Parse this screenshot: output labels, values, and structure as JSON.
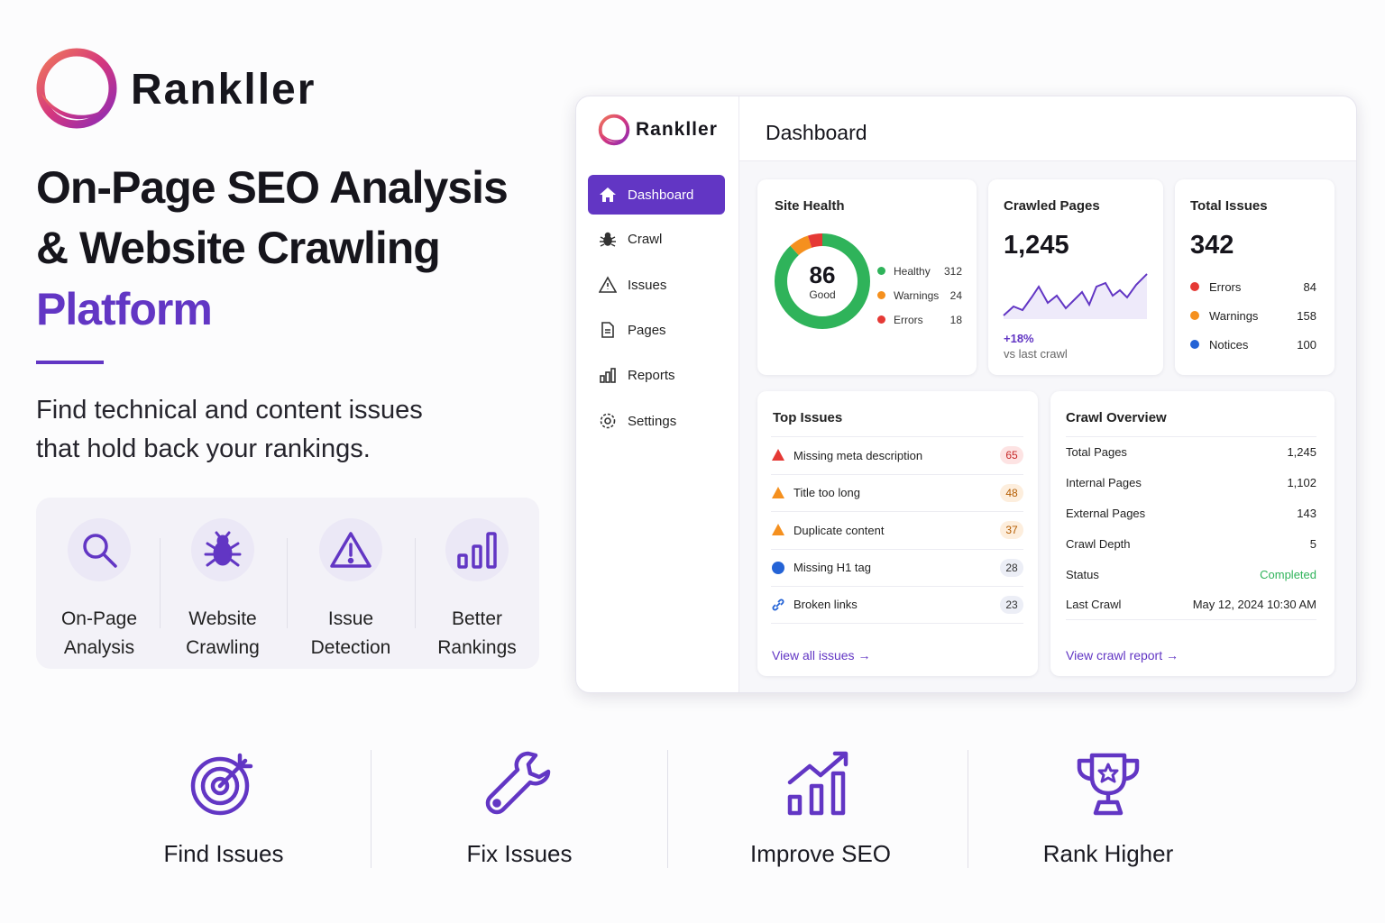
{
  "brand": {
    "name": "Rankller"
  },
  "hero": {
    "title_line1": "On-Page SEO Analysis",
    "title_line2": "& Website Crawling",
    "title_accent": "Platform",
    "subtitle_line1": "Find technical and content issues",
    "subtitle_line2": "that hold back your rankings."
  },
  "features": [
    {
      "line1": "On-Page",
      "line2": "Analysis"
    },
    {
      "line1": "Website",
      "line2": "Crawling"
    },
    {
      "line1": "Issue",
      "line2": "Detection"
    },
    {
      "line1": "Better",
      "line2": "Rankings"
    }
  ],
  "dashboard": {
    "brand": "Rankller",
    "nav": [
      "Dashboard",
      "Crawl",
      "Issues",
      "Pages",
      "Reports",
      "Settings"
    ],
    "title": "Dashboard",
    "site_health": {
      "title": "Site Health",
      "score": 86,
      "score_label": "Good",
      "legend": [
        {
          "label": "Healthy",
          "value": 312,
          "color": "#2fb35a"
        },
        {
          "label": "Warnings",
          "value": 24,
          "color": "#f5901e"
        },
        {
          "label": "Errors",
          "value": 18,
          "color": "#e53935"
        }
      ]
    },
    "crawled_pages": {
      "title": "Crawled Pages",
      "value": "1,245",
      "change": "+18%",
      "change_note": "vs last crawl"
    },
    "total_issues": {
      "title": "Total Issues",
      "value": 342,
      "rows": [
        {
          "label": "Errors",
          "value": 84,
          "color": "#e53935"
        },
        {
          "label": "Warnings",
          "value": 158,
          "color": "#f5901e"
        },
        {
          "label": "Notices",
          "value": 100,
          "color": "#2463d6"
        }
      ]
    },
    "top_issues": {
      "title": "Top Issues",
      "rows": [
        {
          "label": "Missing meta description",
          "count": 65
        },
        {
          "label": "Title too long",
          "count": 48
        },
        {
          "label": "Duplicate content",
          "count": 37
        },
        {
          "label": "Missing H1 tag",
          "count": 28
        },
        {
          "label": "Broken links",
          "count": 23
        }
      ],
      "link": "View all issues →"
    },
    "crawl_overview": {
      "title": "Crawl Overview",
      "rows": [
        [
          "Total Pages",
          "1,245"
        ],
        [
          "Internal Pages",
          "1,102"
        ],
        [
          "External Pages",
          "143"
        ],
        [
          "Crawl Depth",
          "5"
        ],
        [
          "Status",
          "Completed"
        ],
        [
          "Last Crawl",
          "May 12, 2024 10:30 AM"
        ]
      ],
      "link": "View crawl report →"
    }
  },
  "benefits": [
    "Find Issues",
    "Fix Issues",
    "Improve SEO",
    "Rank Higher"
  ]
}
